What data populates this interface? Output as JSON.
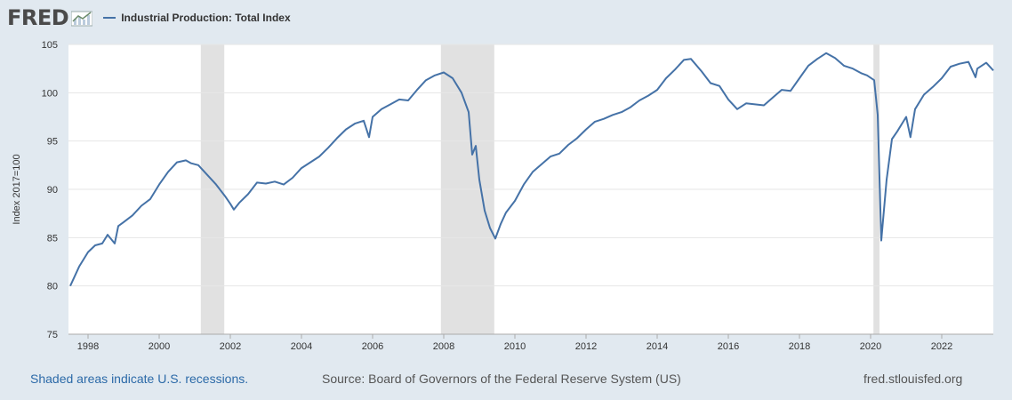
{
  "header": {
    "logo": "FRED",
    "legend_label": "Industrial Production: Total Index"
  },
  "footer": {
    "note": "Shaded areas indicate U.S. recessions.",
    "source": "Source: Board of Governors of the Federal Reserve System (US)",
    "site": "fred.stlouisfed.org"
  },
  "colors": {
    "line": "#4572a7",
    "recession": "#e1e1e1",
    "background": "#e1e9f0",
    "plot_bg": "#ffffff",
    "grid": "#e6e6e6"
  },
  "chart_data": {
    "type": "line",
    "title": "Industrial Production: Total Index",
    "ylabel": "Index 2017=100",
    "xlabel": "",
    "xlim": [
      1997.45,
      2023.45
    ],
    "ylim": [
      75,
      105
    ],
    "y_ticks": [
      75,
      80,
      85,
      90,
      95,
      100,
      105
    ],
    "x_ticks": [
      {
        "value": 1998,
        "label": "1998"
      },
      {
        "value": 2000,
        "label": "2000"
      },
      {
        "value": 2002,
        "label": "2002"
      },
      {
        "value": 2004,
        "label": "2004"
      },
      {
        "value": 2006,
        "label": "2006"
      },
      {
        "value": 2008,
        "label": "2008"
      },
      {
        "value": 2010,
        "label": "2010"
      },
      {
        "value": 2012,
        "label": "2012"
      },
      {
        "value": 2014,
        "label": "2014"
      },
      {
        "value": 2016,
        "label": "2016"
      },
      {
        "value": 2018,
        "label": "2018"
      },
      {
        "value": 2020,
        "label": "2020"
      },
      {
        "value": 2022,
        "label": "2022"
      }
    ],
    "grid": true,
    "recessions": [
      [
        2001.17,
        2001.83
      ],
      [
        2007.92,
        2009.42
      ],
      [
        2020.08,
        2020.25
      ]
    ],
    "series": [
      {
        "points": [
          [
            1997.5,
            80.0
          ],
          [
            1997.75,
            82.0
          ],
          [
            1998.0,
            83.5
          ],
          [
            1998.2,
            84.2
          ],
          [
            1998.4,
            84.4
          ],
          [
            1998.55,
            85.3
          ],
          [
            1998.75,
            84.4
          ],
          [
            1998.85,
            86.2
          ],
          [
            1999.0,
            86.6
          ],
          [
            1999.25,
            87.3
          ],
          [
            1999.5,
            88.3
          ],
          [
            1999.75,
            89.0
          ],
          [
            2000.0,
            90.5
          ],
          [
            2000.25,
            91.8
          ],
          [
            2000.5,
            92.8
          ],
          [
            2000.75,
            93.0
          ],
          [
            2000.9,
            92.7
          ],
          [
            2001.1,
            92.5
          ],
          [
            2001.35,
            91.5
          ],
          [
            2001.6,
            90.5
          ],
          [
            2001.85,
            89.3
          ],
          [
            2002.0,
            88.5
          ],
          [
            2002.1,
            87.9
          ],
          [
            2002.25,
            88.6
          ],
          [
            2002.5,
            89.5
          ],
          [
            2002.75,
            90.7
          ],
          [
            2003.0,
            90.6
          ],
          [
            2003.25,
            90.8
          ],
          [
            2003.5,
            90.5
          ],
          [
            2003.75,
            91.2
          ],
          [
            2004.0,
            92.2
          ],
          [
            2004.25,
            92.8
          ],
          [
            2004.5,
            93.4
          ],
          [
            2004.75,
            94.3
          ],
          [
            2005.0,
            95.3
          ],
          [
            2005.25,
            96.2
          ],
          [
            2005.5,
            96.8
          ],
          [
            2005.75,
            97.1
          ],
          [
            2005.9,
            95.4
          ],
          [
            2006.0,
            97.5
          ],
          [
            2006.25,
            98.3
          ],
          [
            2006.5,
            98.8
          ],
          [
            2006.75,
            99.3
          ],
          [
            2007.0,
            99.2
          ],
          [
            2007.25,
            100.3
          ],
          [
            2007.5,
            101.3
          ],
          [
            2007.75,
            101.8
          ],
          [
            2008.0,
            102.1
          ],
          [
            2008.25,
            101.5
          ],
          [
            2008.5,
            100.0
          ],
          [
            2008.7,
            98.0
          ],
          [
            2008.8,
            93.6
          ],
          [
            2008.9,
            94.5
          ],
          [
            2009.0,
            91.0
          ],
          [
            2009.15,
            87.8
          ],
          [
            2009.3,
            86.0
          ],
          [
            2009.45,
            84.9
          ],
          [
            2009.6,
            86.4
          ],
          [
            2009.75,
            87.6
          ],
          [
            2010.0,
            88.8
          ],
          [
            2010.25,
            90.5
          ],
          [
            2010.5,
            91.8
          ],
          [
            2010.75,
            92.6
          ],
          [
            2011.0,
            93.4
          ],
          [
            2011.25,
            93.7
          ],
          [
            2011.5,
            94.6
          ],
          [
            2011.75,
            95.3
          ],
          [
            2012.0,
            96.2
          ],
          [
            2012.25,
            97.0
          ],
          [
            2012.5,
            97.3
          ],
          [
            2012.75,
            97.7
          ],
          [
            2013.0,
            98.0
          ],
          [
            2013.25,
            98.5
          ],
          [
            2013.5,
            99.2
          ],
          [
            2013.75,
            99.7
          ],
          [
            2014.0,
            100.3
          ],
          [
            2014.25,
            101.5
          ],
          [
            2014.5,
            102.4
          ],
          [
            2014.75,
            103.4
          ],
          [
            2014.95,
            103.5
          ],
          [
            2015.25,
            102.2
          ],
          [
            2015.5,
            101.0
          ],
          [
            2015.75,
            100.7
          ],
          [
            2016.0,
            99.3
          ],
          [
            2016.25,
            98.3
          ],
          [
            2016.5,
            98.9
          ],
          [
            2016.75,
            98.8
          ],
          [
            2017.0,
            98.7
          ],
          [
            2017.25,
            99.5
          ],
          [
            2017.5,
            100.3
          ],
          [
            2017.75,
            100.2
          ],
          [
            2018.0,
            101.5
          ],
          [
            2018.25,
            102.8
          ],
          [
            2018.5,
            103.5
          ],
          [
            2018.75,
            104.1
          ],
          [
            2019.0,
            103.6
          ],
          [
            2019.25,
            102.8
          ],
          [
            2019.5,
            102.5
          ],
          [
            2019.75,
            102.0
          ],
          [
            2019.9,
            101.8
          ],
          [
            2020.1,
            101.3
          ],
          [
            2020.2,
            97.7
          ],
          [
            2020.3,
            84.7
          ],
          [
            2020.45,
            91.0
          ],
          [
            2020.6,
            95.2
          ],
          [
            2020.75,
            96.0
          ],
          [
            2021.0,
            97.5
          ],
          [
            2021.12,
            95.4
          ],
          [
            2021.25,
            98.3
          ],
          [
            2021.5,
            99.8
          ],
          [
            2021.75,
            100.6
          ],
          [
            2022.0,
            101.5
          ],
          [
            2022.25,
            102.7
          ],
          [
            2022.5,
            103.0
          ],
          [
            2022.75,
            103.2
          ],
          [
            2022.95,
            101.6
          ],
          [
            2023.0,
            102.5
          ],
          [
            2023.25,
            103.1
          ],
          [
            2023.45,
            102.3
          ]
        ]
      }
    ]
  }
}
